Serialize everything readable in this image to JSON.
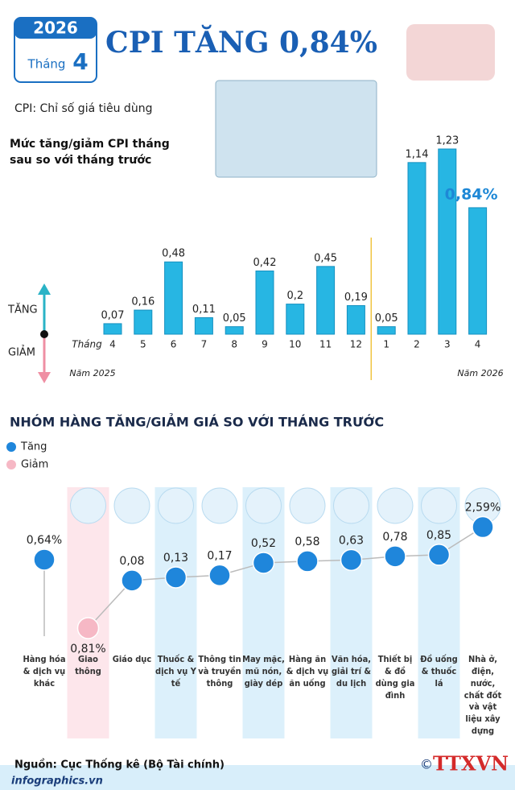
{
  "header": {
    "year": "2026",
    "month_label": "Tháng",
    "month": "4",
    "title": "CPI TĂNG 0,84%",
    "subtitle": "CPI: Chỉ số giá tiêu dùng"
  },
  "chart_data": [
    {
      "type": "bar",
      "title": "Mức tăng/giảm CPI tháng sau so với tháng trước",
      "x_label": "Tháng",
      "categories": [
        "4",
        "5",
        "6",
        "7",
        "8",
        "9",
        "10",
        "11",
        "12",
        "1",
        "2",
        "3",
        "4"
      ],
      "values": [
        0.07,
        0.16,
        0.48,
        0.11,
        0.05,
        0.42,
        0.2,
        0.45,
        0.19,
        0.05,
        1.14,
        1.23,
        0.84
      ],
      "value_labels": [
        "0,07",
        "0,16",
        "0,48",
        "0,11",
        "0,05",
        "0,42",
        "0,2",
        "0,45",
        "0,19",
        "0,05",
        "1,14",
        "1,23",
        "0,84%"
      ],
      "annotations": {
        "up": "TĂNG",
        "down": "GIẢM"
      },
      "year_labels": [
        "Năm 2025",
        "Năm 2026"
      ],
      "color": "#27b6e3"
    },
    {
      "type": "dot",
      "title": "NHÓM HÀNG TĂNG/GIẢM GIÁ SO VỚI THÁNG TRƯỚC",
      "categories": [
        "Hàng hóa & dịch vụ khác",
        "Giao thông",
        "Giáo dục",
        "Thuốc & dịch vụ Y tế",
        "Thông tin và truyền thông",
        "May mặc, mũ nón, giày dép",
        "Hàng ăn & dịch vụ ăn uống",
        "Văn hóa, giải trí & du lịch",
        "Thiết bị & đồ dùng gia đình",
        "Đồ uống & thuốc lá",
        "Nhà ở, điện, nước, chất đốt và vật liệu xây dựng"
      ],
      "values": [
        0.64,
        -0.81,
        0.08,
        0.13,
        0.17,
        0.52,
        0.58,
        0.63,
        0.78,
        0.85,
        2.59
      ],
      "value_labels": [
        "0,64%",
        "0,81%",
        "0,08",
        "0,13",
        "0,17",
        "0,52",
        "0,58",
        "0,63",
        "0,78",
        "0,85",
        "2,59%"
      ],
      "legend": [
        {
          "name": "Tăng",
          "color": "#1f86db"
        },
        {
          "name": "Giảm",
          "color": "#f6b8c5"
        }
      ]
    }
  ],
  "footer": {
    "source": "Nguồn: Cục Thống kê (Bộ Tài chính)",
    "site": "infographics.vn",
    "copyright": "©",
    "logo": "TTXVN"
  }
}
